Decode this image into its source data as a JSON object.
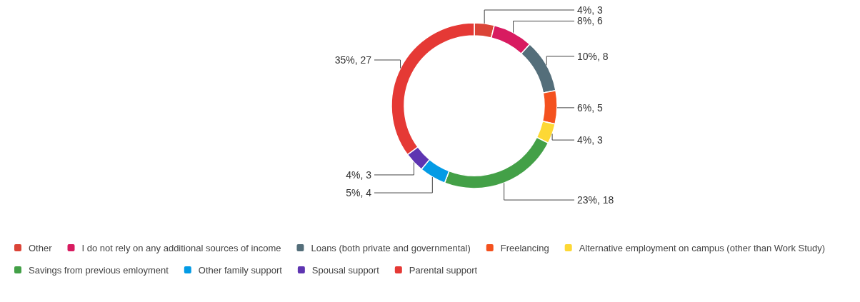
{
  "chart_data": {
    "type": "donut",
    "categories": [
      "Other",
      "I do not rely on any additional sources of income",
      "Loans (both private and governmental)",
      "Freelancing",
      "Alternative employment on campus (other than Work Study)",
      "Savings from previous emloyment",
      "Other family support",
      "Spousal support",
      "Parental support"
    ],
    "values": [
      3,
      6,
      8,
      5,
      3,
      18,
      4,
      3,
      27
    ],
    "value_labels": [
      "4%, 3",
      "8%, 6",
      "10%, 8",
      "6%, 5",
      "4%, 3",
      "23%, 18",
      "5%, 4",
      "4%, 3",
      "35%, 27"
    ],
    "colors": [
      "#db4437",
      "#d81b60",
      "#546e7a",
      "#f4511e",
      "#fdd835",
      "#43a047",
      "#039be5",
      "#5e35b1",
      "#e53935"
    ],
    "legend": "bottom"
  }
}
